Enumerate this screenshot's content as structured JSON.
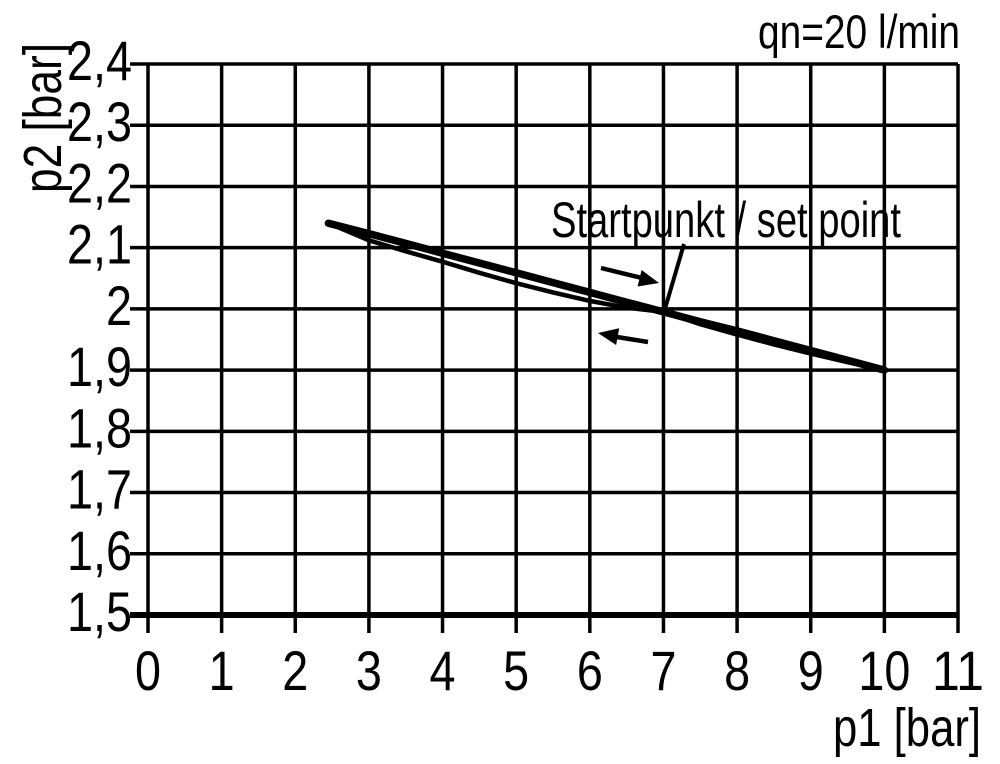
{
  "page": {
    "background": "#ffffff",
    "ink": "#000000"
  },
  "chart_data": {
    "type": "line",
    "title": "qn=20 l/min",
    "xlabel": "p1 [bar]",
    "ylabel": "p2 [bar]",
    "xlim": [
      0,
      11
    ],
    "ylim": [
      1.5,
      2.4
    ],
    "x_ticks": [
      0,
      1,
      2,
      3,
      4,
      5,
      6,
      7,
      8,
      9,
      10,
      11
    ],
    "y_ticks": [
      1.5,
      1.6,
      1.7,
      1.8,
      1.9,
      2.0,
      2.1,
      2.2,
      2.3,
      2.4
    ],
    "decimal_separator": ",",
    "grid": true,
    "legend": "none",
    "series": [
      {
        "name": "branch-p1-increasing",
        "arrow": "right",
        "stroke_px": 7.5,
        "x": [
          2.45,
          3,
          3.5,
          4,
          4.5,
          5,
          5.5,
          6,
          6.5,
          7,
          7.5,
          8,
          8.5,
          9,
          9.5,
          10
        ],
        "y": [
          2.14,
          2.123,
          2.107,
          2.091,
          2.075,
          2.059,
          2.043,
          2.027,
          2.011,
          1.995,
          1.979,
          1.964,
          1.948,
          1.932,
          1.916,
          1.9
        ]
      },
      {
        "name": "branch-p1-decreasing",
        "arrow": "left",
        "stroke_px": 4.5,
        "x": [
          2.45,
          3,
          3.5,
          4,
          4.5,
          5,
          5.5,
          6,
          6.5,
          7,
          7.5,
          8,
          8.5,
          9,
          9.5,
          10
        ],
        "y": [
          2.14,
          2.112,
          2.094,
          2.077,
          2.059,
          2.042,
          2.027,
          2.013,
          2.002,
          1.995,
          1.975,
          1.958,
          1.942,
          1.927,
          1.913,
          1.9
        ]
      }
    ],
    "annotations": [
      {
        "text": "Startpunkt / set point",
        "x": 7,
        "y": 2.0
      }
    ]
  }
}
